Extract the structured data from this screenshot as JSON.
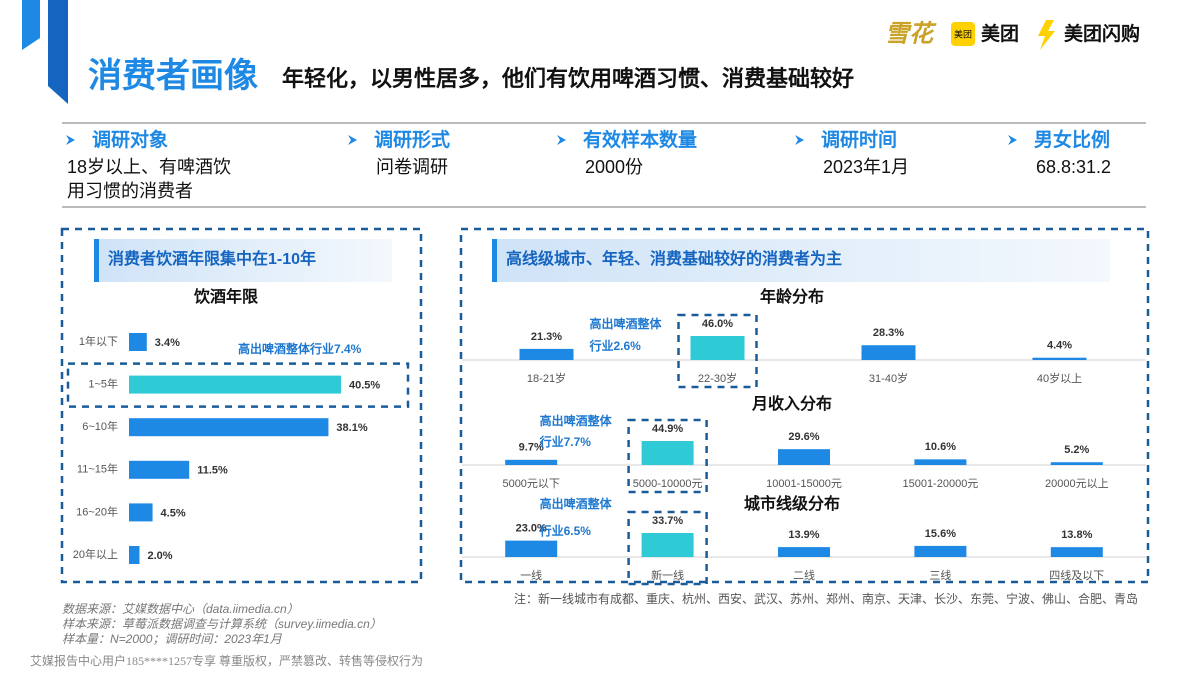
{
  "header": {
    "title": "消费者画像",
    "subtitle": "年轻化，以男性居多，他们有饮用啤酒习惯、消费基础较好",
    "logos": {
      "brand": "雪花",
      "badge": "美团",
      "meituan": "美团",
      "flash": "美团闪购"
    }
  },
  "survey": [
    {
      "label": "调研对象",
      "value": [
        "18岁以上、有啤酒饮",
        "用习惯的消费者"
      ]
    },
    {
      "label": "调研形式",
      "value": [
        "问卷调研"
      ]
    },
    {
      "label": "有效样本数量",
      "value": [
        "2000份"
      ]
    },
    {
      "label": "调研时间",
      "value": [
        "2023年1月"
      ]
    },
    {
      "label": "男女比例",
      "value": [
        "68.8:31.2"
      ]
    }
  ],
  "panels": {
    "left": "消费者饮酒年限集中在1-10年",
    "right": "高线级城市、年轻、消费基础较好的消费者为主"
  },
  "chart_data": [
    {
      "type": "hbar",
      "title": "饮酒年限",
      "categories": [
        "1年以下",
        "1~5年",
        "6~10年",
        "11~15年",
        "16~20年",
        "20年以上"
      ],
      "values": [
        3.4,
        40.5,
        38.1,
        11.5,
        4.5,
        2.0
      ],
      "value_labels": [
        "3.4%",
        "40.5%",
        "38.1%",
        "11.5%",
        "4.5%",
        "2.0%"
      ],
      "color": "#1e88e5",
      "highlight_color": "#2ecad6",
      "highlight": 1,
      "annotation": [
        "高出啤酒整体行业7.4%"
      ]
    },
    {
      "type": "bar",
      "title": "年龄分布",
      "categories": [
        "18-21岁",
        "22-30岁",
        "31-40岁",
        "40岁以上"
      ],
      "values": [
        21.3,
        46.0,
        28.3,
        4.4
      ],
      "value_labels": [
        "21.3%",
        "46.0%",
        "28.3%",
        "4.4%"
      ],
      "color": "#1e88e5",
      "highlight_color": "#2ecad6",
      "highlight": 1,
      "annotation": [
        "高出啤酒整体",
        "行业2.6%"
      ]
    },
    {
      "type": "bar",
      "title": "月收入分布",
      "categories": [
        "5000元以下",
        "5000-10000元",
        "10001-15000元",
        "15001-20000元",
        "20000元以上"
      ],
      "values": [
        9.7,
        44.9,
        29.6,
        10.6,
        5.2
      ],
      "value_labels": [
        "9.7%",
        "44.9%",
        "29.6%",
        "10.6%",
        "5.2%"
      ],
      "color": "#1e88e5",
      "highlight_color": "#2ecad6",
      "highlight": 1,
      "annotation": [
        "高出啤酒整体",
        "行业7.7%"
      ]
    },
    {
      "type": "bar",
      "title": "城市线级分布",
      "categories": [
        "一线",
        "新一线",
        "二线",
        "三线",
        "四线及以下"
      ],
      "values": [
        23.0,
        33.7,
        13.9,
        15.6,
        13.8
      ],
      "value_labels": [
        "23.0%",
        "33.7%",
        "13.9%",
        "15.6%",
        "13.8%"
      ],
      "color": "#1e88e5",
      "highlight_color": "#2ecad6",
      "highlight": 1,
      "annotation": [
        "高出啤酒整体",
        "行业6.5%"
      ]
    }
  ],
  "note": "注：新一线城市有成都、重庆、杭州、西安、武汉、苏州、郑州、南京、天津、长沙、东莞、宁波、佛山、合肥、青岛",
  "sources": [
    "数据来源：艾媒数据中心（data.iimedia.cn）",
    "样本来源：草莓派数据调查与计算系统（survey.iimedia.cn）",
    "样本量：N=2000；调研时间：2023年1月"
  ],
  "watermark": "艾媒报告中心用户185****1257专享 尊重版权，严禁篡改、转售等侵权行为"
}
